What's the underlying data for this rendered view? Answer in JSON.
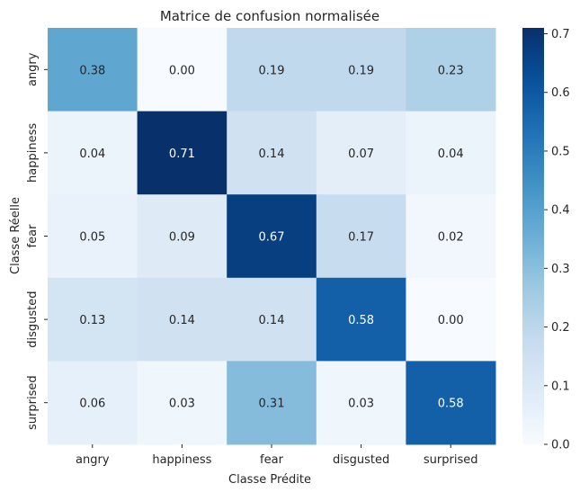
{
  "chart_data": {
    "type": "heatmap",
    "title": "Matrice de confusion normalisée",
    "xlabel": "Classe Prédite",
    "ylabel": "Classe Réelle",
    "x_categories": [
      "angry",
      "happiness",
      "fear",
      "disgusted",
      "surprised"
    ],
    "y_categories": [
      "angry",
      "happiness",
      "fear",
      "disgusted",
      "surprised"
    ],
    "values": [
      [
        0.38,
        0.0,
        0.19,
        0.19,
        0.23
      ],
      [
        0.04,
        0.71,
        0.14,
        0.07,
        0.04
      ],
      [
        0.05,
        0.09,
        0.67,
        0.17,
        0.02
      ],
      [
        0.13,
        0.14,
        0.14,
        0.58,
        0.0
      ],
      [
        0.06,
        0.03,
        0.31,
        0.03,
        0.58
      ]
    ],
    "colorbar": {
      "colormap": "Blues",
      "range": [
        0.0,
        0.71
      ],
      "ticks": [
        "0.0",
        "0.1",
        "0.2",
        "0.3",
        "0.4",
        "0.5",
        "0.6",
        "0.7"
      ]
    },
    "grid": false
  }
}
